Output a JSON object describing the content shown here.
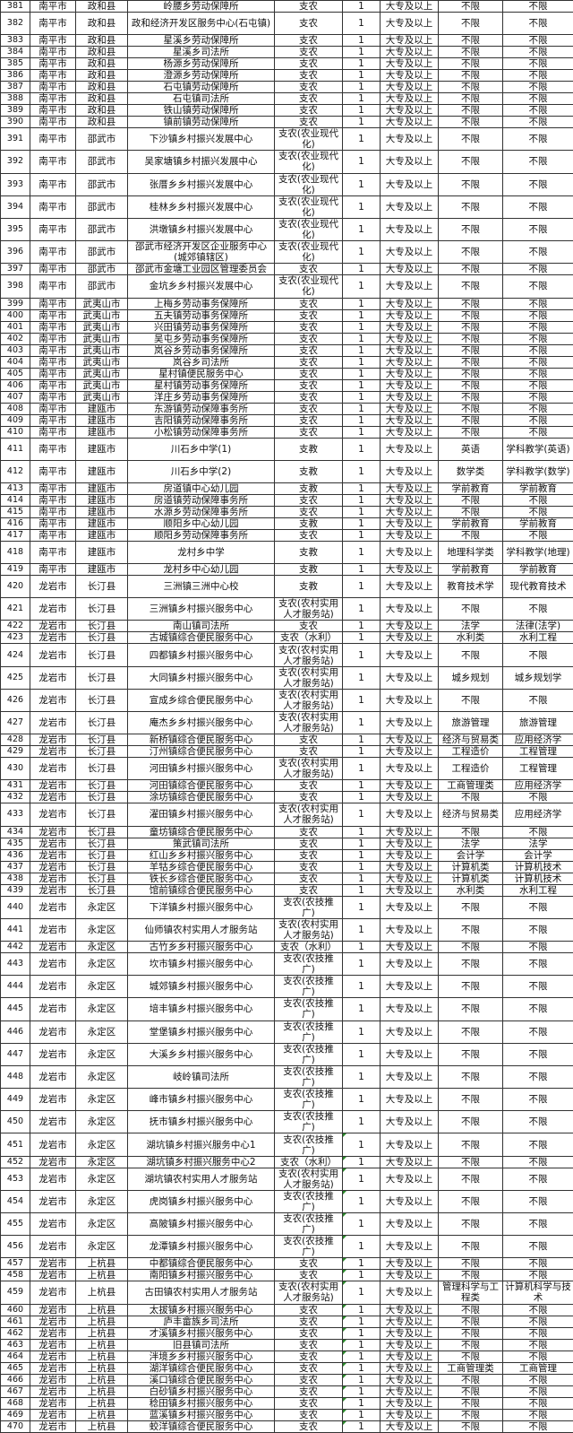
{
  "table": {
    "comment_marker_color": "#2a8a2a",
    "rows": [
      [
        "381",
        "南平市",
        "政和县",
        "岭腰乡劳动保障所",
        "支农",
        "1",
        "大专及以上",
        "不限",
        "不限"
      ],
      [
        "382",
        "南平市",
        "政和县",
        "政和经济开发区服务中心(石屯镇)",
        "支农",
        "1",
        "大专及以上",
        "不限",
        "不限"
      ],
      [
        "383",
        "南平市",
        "政和县",
        "星溪乡劳动保障所",
        "支农",
        "1",
        "大专及以上",
        "不限",
        "不限"
      ],
      [
        "384",
        "南平市",
        "政和县",
        "星溪乡司法所",
        "支农",
        "1",
        "大专及以上",
        "不限",
        "不限"
      ],
      [
        "385",
        "南平市",
        "政和县",
        "杨源乡劳动保障所",
        "支农",
        "1",
        "大专及以上",
        "不限",
        "不限"
      ],
      [
        "386",
        "南平市",
        "政和县",
        "澄源乡劳动保障所",
        "支农",
        "1",
        "大专及以上",
        "不限",
        "不限"
      ],
      [
        "387",
        "南平市",
        "政和县",
        "石屯镇劳动保障所",
        "支农",
        "1",
        "大专及以上",
        "不限",
        "不限"
      ],
      [
        "388",
        "南平市",
        "政和县",
        "石屯镇司法所",
        "支农",
        "1",
        "大专及以上",
        "不限",
        "不限"
      ],
      [
        "389",
        "南平市",
        "政和县",
        "铁山镇劳动保障所",
        "支农",
        "1",
        "大专及以上",
        "不限",
        "不限"
      ],
      [
        "390",
        "南平市",
        "政和县",
        "镇前镇劳动保障所",
        "支农",
        "1",
        "大专及以上",
        "不限",
        "不限"
      ],
      [
        "391",
        "南平市",
        "邵武市",
        "下沙镇乡村振兴发展中心",
        "支农(农业现代化)",
        "1",
        "大专及以上",
        "不限",
        "不限"
      ],
      [
        "392",
        "南平市",
        "邵武市",
        "吴家塘镇乡村振兴发展中心",
        "支农(农业现代化)",
        "1",
        "大专及以上",
        "不限",
        "不限"
      ],
      [
        "393",
        "南平市",
        "邵武市",
        "张厝乡乡村振兴发展中心",
        "支农(农业现代化)",
        "1",
        "大专及以上",
        "不限",
        "不限"
      ],
      [
        "394",
        "南平市",
        "邵武市",
        "桂林乡乡村振兴发展中心",
        "支农(农业现代化)",
        "1",
        "大专及以上",
        "不限",
        "不限"
      ],
      [
        "395",
        "南平市",
        "邵武市",
        "洪墩镇乡村振兴发展中心",
        "支农(农业现代化)",
        "1",
        "大专及以上",
        "不限",
        "不限"
      ],
      [
        "396",
        "南平市",
        "邵武市",
        "邵武市经济开发区企业服务中心(城郊镇辖区)",
        "支农(农业现代化)",
        "1",
        "大专及以上",
        "不限",
        "不限"
      ],
      [
        "397",
        "南平市",
        "邵武市",
        "邵武市金塘工业园区管理委员会",
        "支农",
        "1",
        "大专及以上",
        "不限",
        "不限"
      ],
      [
        "398",
        "南平市",
        "邵武市",
        "金坑乡乡村振兴发展中心",
        "支农(农业现代化)",
        "1",
        "大专及以上",
        "不限",
        "不限"
      ],
      [
        "399",
        "南平市",
        "武夷山市",
        "上梅乡劳动事务保障所",
        "支农",
        "1",
        "大专及以上",
        "不限",
        "不限"
      ],
      [
        "400",
        "南平市",
        "武夷山市",
        "五夫镇劳动事务保障所",
        "支农",
        "1",
        "大专及以上",
        "不限",
        "不限"
      ],
      [
        "401",
        "南平市",
        "武夷山市",
        "兴田镇劳动事务保障所",
        "支农",
        "1",
        "大专及以上",
        "不限",
        "不限"
      ],
      [
        "402",
        "南平市",
        "武夷山市",
        "吴屯乡劳动事务保障所",
        "支农",
        "1",
        "大专及以上",
        "不限",
        "不限"
      ],
      [
        "403",
        "南平市",
        "武夷山市",
        "岚谷乡劳动事务保障所",
        "支农",
        "1",
        "大专及以上",
        "不限",
        "不限"
      ],
      [
        "404",
        "南平市",
        "武夷山市",
        "岚谷乡司法所",
        "支农",
        "1",
        "大专及以上",
        "不限",
        "不限"
      ],
      [
        "405",
        "南平市",
        "武夷山市",
        "星村镇便民服务中心",
        "支农",
        "1",
        "大专及以上",
        "不限",
        "不限"
      ],
      [
        "406",
        "南平市",
        "武夷山市",
        "星村镇劳动事务保障所",
        "支农",
        "1",
        "大专及以上",
        "不限",
        "不限"
      ],
      [
        "407",
        "南平市",
        "武夷山市",
        "洋庄乡劳动事务保障所",
        "支农",
        "1",
        "大专及以上",
        "不限",
        "不限"
      ],
      [
        "408",
        "南平市",
        "建瓯市",
        "东游镇劳动保障事务所",
        "支农",
        "1",
        "大专及以上",
        "不限",
        "不限"
      ],
      [
        "409",
        "南平市",
        "建瓯市",
        "吉阳镇劳动保障事务所",
        "支农",
        "1",
        "大专及以上",
        "不限",
        "不限"
      ],
      [
        "410",
        "南平市",
        "建瓯市",
        "小松镇劳动保障事务所",
        "支农",
        "1",
        "大专及以上",
        "不限",
        "不限"
      ],
      [
        "411",
        "南平市",
        "建瓯市",
        "川石乡中学(1)",
        "支教",
        "1",
        "大专及以上",
        "英语",
        "学科教学(英语)"
      ],
      [
        "412",
        "南平市",
        "建瓯市",
        "川石乡中学(2)",
        "支教",
        "1",
        "大专及以上",
        "数学类",
        "学科教学(数学)"
      ],
      [
        "413",
        "南平市",
        "建瓯市",
        "房道镇中心幼儿园",
        "支教",
        "1",
        "大专及以上",
        "学前教育",
        "学前教育"
      ],
      [
        "414",
        "南平市",
        "建瓯市",
        "房道镇劳动保障事务所",
        "支农",
        "1",
        "大专及以上",
        "不限",
        "不限"
      ],
      [
        "415",
        "南平市",
        "建瓯市",
        "水源乡劳动保障事务所",
        "支农",
        "1",
        "大专及以上",
        "不限",
        "不限"
      ],
      [
        "416",
        "南平市",
        "建瓯市",
        "顺阳乡中心幼儿园",
        "支教",
        "1",
        "大专及以上",
        "学前教育",
        "学前教育"
      ],
      [
        "417",
        "南平市",
        "建瓯市",
        "顺阳乡劳动保障事务所",
        "支农",
        "1",
        "大专及以上",
        "不限",
        "不限"
      ],
      [
        "418",
        "南平市",
        "建瓯市",
        "龙村乡中学",
        "支教",
        "1",
        "大专及以上",
        "地理科学类",
        "学科教学(地理)"
      ],
      [
        "419",
        "南平市",
        "建瓯市",
        "龙村乡中心幼儿园",
        "支教",
        "1",
        "大专及以上",
        "学前教育",
        "学前教育"
      ],
      [
        "420",
        "龙岩市",
        "长汀县",
        "三洲镇三洲中心校",
        "支教",
        "1",
        "大专及以上",
        "教育技术学",
        "现代教育技术"
      ],
      [
        "421",
        "龙岩市",
        "长汀县",
        "三洲镇乡村振兴服务中心",
        "支农(农村实用人才服务站)",
        "1",
        "大专及以上",
        "不限",
        "不限"
      ],
      [
        "422",
        "龙岩市",
        "长汀县",
        "南山镇司法所",
        "支农",
        "1",
        "大专及以上",
        "法学",
        "法律(法学)"
      ],
      [
        "423",
        "龙岩市",
        "长汀县",
        "古城镇综合便民服务中心",
        "支农（水利）",
        "1",
        "大专及以上",
        "水利类",
        "水利工程"
      ],
      [
        "424",
        "龙岩市",
        "长汀县",
        "四都镇乡村振兴服务中心",
        "支农(农村实用人才服务站)",
        "1",
        "大专及以上",
        "不限",
        "不限"
      ],
      [
        "425",
        "龙岩市",
        "长汀县",
        "大同镇乡村振兴服务中心",
        "支农(农村实用人才服务站)",
        "1",
        "大专及以上",
        "城乡规划",
        "城乡规划学"
      ],
      [
        "426",
        "龙岩市",
        "长汀县",
        "宣成乡综合便民服务中心",
        "支农(农村实用人才服务站)",
        "1",
        "大专及以上",
        "不限",
        "不限"
      ],
      [
        "427",
        "龙岩市",
        "长汀县",
        "庵杰乡乡村振兴服务中心",
        "支农(农村实用人才服务站)",
        "1",
        "大专及以上",
        "旅游管理",
        "旅游管理"
      ],
      [
        "428",
        "龙岩市",
        "长汀县",
        "新桥镇综合便民服务中心",
        "支农",
        "1",
        "大专及以上",
        "经济与贸易类",
        "应用经济学"
      ],
      [
        "429",
        "龙岩市",
        "长汀县",
        "汀州镇综合便民服务中心",
        "支农",
        "1",
        "大专及以上",
        "工程造价",
        "工程管理"
      ],
      [
        "430",
        "龙岩市",
        "长汀县",
        "河田镇乡村振兴服务中心",
        "支农(农村实用人才服务站)",
        "1",
        "大专及以上",
        "工程造价",
        "工程管理"
      ],
      [
        "431",
        "龙岩市",
        "长汀县",
        "河田镇综合便民服务中心",
        "支农",
        "1",
        "大专及以上",
        "工商管理类",
        "应用经济学"
      ],
      [
        "432",
        "龙岩市",
        "长汀县",
        "涂坊镇综合便民服务中心",
        "支农",
        "1",
        "大专及以上",
        "不限",
        "不限"
      ],
      [
        "433",
        "龙岩市",
        "长汀县",
        "濯田镇乡村振兴服务中心",
        "支农(农村实用人才服务站)",
        "1",
        "大专及以上",
        "经济与贸易类",
        "应用经济学"
      ],
      [
        "434",
        "龙岩市",
        "长汀县",
        "童坊镇综合便民服务中心",
        "支农",
        "1",
        "大专及以上",
        "不限",
        "不限"
      ],
      [
        "435",
        "龙岩市",
        "长汀县",
        "策武镇司法所",
        "支农",
        "1",
        "大专及以上",
        "法学",
        "法学"
      ],
      [
        "436",
        "龙岩市",
        "长汀县",
        "红山乡乡村振兴服务中心",
        "支农",
        "1",
        "大专及以上",
        "会计学",
        "会计学"
      ],
      [
        "437",
        "龙岩市",
        "长汀县",
        "羊牯乡综合便民服务中心",
        "支农",
        "1",
        "大专及以上",
        "计算机类",
        "计算机技术"
      ],
      [
        "438",
        "龙岩市",
        "长汀县",
        "铁长乡综合便民服务中心",
        "支农",
        "1",
        "大专及以上",
        "计算机类",
        "计算机技术"
      ],
      [
        "439",
        "龙岩市",
        "长汀县",
        "馆前镇综合便民服务中心",
        "支农",
        "1",
        "大专及以上",
        "水利类",
        "水利工程"
      ],
      [
        "440",
        "龙岩市",
        "永定区",
        "下洋镇乡村振兴服务中心",
        "支农(农技推广)",
        "1",
        "大专及以上",
        "不限",
        "不限"
      ],
      [
        "441",
        "龙岩市",
        "永定区",
        "仙师镇农村实用人才服务站",
        "支农(农村实用人才服务站)",
        "1",
        "大专及以上",
        "不限",
        "不限"
      ],
      [
        "442",
        "龙岩市",
        "永定区",
        "古竹乡乡村振兴服务中心",
        "支农（水利）",
        "1",
        "大专及以上",
        "不限",
        "不限"
      ],
      [
        "443",
        "龙岩市",
        "永定区",
        "坎市镇乡村振兴服务中心",
        "支农(农技推广)",
        "1",
        "大专及以上",
        "不限",
        "不限"
      ],
      [
        "444",
        "龙岩市",
        "永定区",
        "城郊镇乡村振兴服务中心",
        "支农(农技推广)",
        "1",
        "大专及以上",
        "不限",
        "不限"
      ],
      [
        "445",
        "龙岩市",
        "永定区",
        "培丰镇乡村振兴服务中心",
        "支农(农技推广)",
        "1",
        "大专及以上",
        "不限",
        "不限"
      ],
      [
        "446",
        "龙岩市",
        "永定区",
        "堂堡镇乡村振兴服务中心",
        "支农(农技推广)",
        "1",
        "大专及以上",
        "不限",
        "不限"
      ],
      [
        "447",
        "龙岩市",
        "永定区",
        "大溪乡乡村振兴服务中心",
        "支农(农技推广)",
        "1",
        "大专及以上",
        "不限",
        "不限"
      ],
      [
        "448",
        "龙岩市",
        "永定区",
        "岐岭镇司法所",
        "支农(农技推广)",
        "1",
        "大专及以上",
        "不限",
        "不限"
      ],
      [
        "449",
        "龙岩市",
        "永定区",
        "峰市镇乡村振兴服务中心",
        "支农(农技推广)",
        "1",
        "大专及以上",
        "不限",
        "不限"
      ],
      [
        "450",
        "龙岩市",
        "永定区",
        "抚市镇乡村振兴服务中心",
        "支农(农技推广)",
        "1",
        "大专及以上",
        "不限",
        "不限"
      ],
      [
        "451",
        "龙岩市",
        "永定区",
        "湖坑镇乡村振兴服务中心1",
        "支农(农技推广)",
        "1",
        "大专及以上",
        "不限",
        "不限"
      ],
      [
        "452",
        "龙岩市",
        "永定区",
        "湖坑镇乡村振兴服务中心2",
        "支农（水利）",
        "1",
        "大专及以上",
        "不限",
        "不限"
      ],
      [
        "453",
        "龙岩市",
        "永定区",
        "湖坑镇农村实用人才服务站",
        "支农(农村实用人才服务站)",
        "1",
        "大专及以上",
        "不限",
        "不限"
      ],
      [
        "454",
        "龙岩市",
        "永定区",
        "虎岗镇乡村振兴服务中心",
        "支农(农技推广)",
        "1",
        "大专及以上",
        "不限",
        "不限"
      ],
      [
        "455",
        "龙岩市",
        "永定区",
        "高陂镇乡村振兴服务中心",
        "支农(农技推广)",
        "1",
        "大专及以上",
        "不限",
        "不限"
      ],
      [
        "456",
        "龙岩市",
        "永定区",
        "龙潭镇乡村振兴服务中心",
        "支农(农技推广)",
        "1",
        "大专及以上",
        "不限",
        "不限"
      ],
      [
        "457",
        "龙岩市",
        "上杭县",
        "中都镇综合便民服务中心",
        "支农",
        "1",
        "大专及以上",
        "不限",
        "不限"
      ],
      [
        "458",
        "龙岩市",
        "上杭县",
        "南阳镇乡村振兴服务中心",
        "支农",
        "1",
        "大专及以上",
        "不限",
        "不限"
      ],
      [
        "459",
        "龙岩市",
        "上杭县",
        "古田镇农村实用人才服务站",
        "支农(农村实用人才服务站)",
        "1",
        "大专及以上",
        "管理科学与工程类",
        "计算机科学与技术"
      ],
      [
        "460",
        "龙岩市",
        "上杭县",
        "太拔镇乡村振兴服务中心",
        "支农",
        "1",
        "大专及以上",
        "不限",
        "不限"
      ],
      [
        "461",
        "龙岩市",
        "上杭县",
        "庐丰畲族乡司法所",
        "支农",
        "1",
        "大专及以上",
        "不限",
        "不限"
      ],
      [
        "462",
        "龙岩市",
        "上杭县",
        "才溪镇乡村振兴服务中心",
        "支农",
        "1",
        "大专及以上",
        "不限",
        "不限"
      ],
      [
        "463",
        "龙岩市",
        "上杭县",
        "旧县镇司法所",
        "支农",
        "1",
        "大专及以上",
        "不限",
        "不限"
      ],
      [
        "464",
        "龙岩市",
        "上杭县",
        "泮境乡乡村振兴服务中心",
        "支农",
        "1",
        "大专及以上",
        "不限",
        "不限"
      ],
      [
        "465",
        "龙岩市",
        "上杭县",
        "湖洋镇综合便民服务中心",
        "支农",
        "1",
        "大专及以上",
        "工商管理类",
        "工商管理"
      ],
      [
        "466",
        "龙岩市",
        "上杭县",
        "溪口镇综合便民服务中心",
        "支农",
        "1",
        "大专及以上",
        "不限",
        "不限"
      ],
      [
        "467",
        "龙岩市",
        "上杭县",
        "白砂镇乡村振兴服务中心",
        "支农",
        "1",
        "大专及以上",
        "不限",
        "不限"
      ],
      [
        "468",
        "龙岩市",
        "上杭县",
        "稔田镇乡村振兴服务中心",
        "支农",
        "1",
        "大专及以上",
        "不限",
        "不限"
      ],
      [
        "469",
        "龙岩市",
        "上杭县",
        "蓝溪镇乡村振兴服务中心",
        "支农",
        "1",
        "大专及以上",
        "不限",
        "不限"
      ],
      [
        "470",
        "龙岩市",
        "上杭县",
        "蛟洋镇综合便民服务中心",
        "支农",
        "1",
        "大专及以上",
        "不限",
        "不限"
      ]
    ]
  }
}
